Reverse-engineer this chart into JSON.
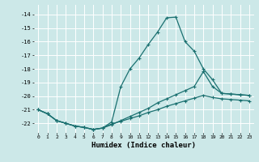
{
  "title": "",
  "xlabel": "Humidex (Indice chaleur)",
  "bg_color": "#cce8e8",
  "grid_color": "#ffffff",
  "line_color": "#1a7070",
  "xlim": [
    -0.5,
    23.5
  ],
  "ylim": [
    -22.7,
    -13.3
  ],
  "yticks": [
    -22,
    -21,
    -20,
    -19,
    -18,
    -17,
    -16,
    -15,
    -14
  ],
  "xticks": [
    0,
    1,
    2,
    3,
    4,
    5,
    6,
    7,
    8,
    9,
    10,
    11,
    12,
    13,
    14,
    15,
    16,
    17,
    18,
    19,
    20,
    21,
    22,
    23
  ],
  "line1_x": [
    0,
    1,
    2,
    3,
    4,
    5,
    6,
    7,
    8,
    9,
    10,
    11,
    12,
    13,
    14,
    15,
    16,
    17,
    18,
    19,
    20,
    21,
    22,
    23
  ],
  "line1_y": [
    -21.0,
    -21.3,
    -21.8,
    -22.0,
    -22.2,
    -22.3,
    -22.45,
    -22.35,
    -21.9,
    -19.3,
    -18.0,
    -17.2,
    -16.2,
    -15.3,
    -14.25,
    -14.2,
    -16.0,
    -16.7,
    -18.0,
    -18.8,
    -19.8,
    -19.85,
    -19.9,
    -19.95
  ],
  "line2_x": [
    0,
    1,
    2,
    3,
    4,
    5,
    6,
    7,
    8,
    9,
    10,
    11,
    12,
    13,
    14,
    15,
    16,
    17,
    18,
    19,
    20,
    21,
    22,
    23
  ],
  "line2_y": [
    -21.0,
    -21.3,
    -21.8,
    -22.0,
    -22.2,
    -22.3,
    -22.45,
    -22.35,
    -22.1,
    -21.8,
    -21.5,
    -21.2,
    -20.9,
    -20.5,
    -20.2,
    -19.9,
    -19.6,
    -19.3,
    -18.2,
    -19.3,
    -19.8,
    -19.85,
    -19.9,
    -19.95
  ],
  "line3_x": [
    0,
    1,
    2,
    3,
    4,
    5,
    6,
    7,
    8,
    9,
    10,
    11,
    12,
    13,
    14,
    15,
    16,
    17,
    18,
    19,
    20,
    21,
    22,
    23
  ],
  "line3_y": [
    -21.0,
    -21.3,
    -21.8,
    -22.0,
    -22.2,
    -22.3,
    -22.45,
    -22.35,
    -22.05,
    -21.85,
    -21.65,
    -21.45,
    -21.2,
    -21.0,
    -20.75,
    -20.55,
    -20.35,
    -20.15,
    -19.95,
    -20.1,
    -20.2,
    -20.25,
    -20.3,
    -20.35
  ]
}
